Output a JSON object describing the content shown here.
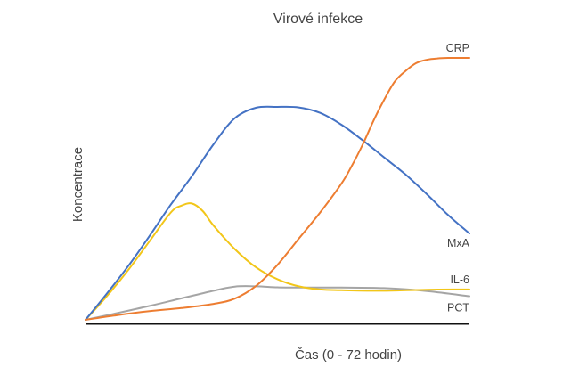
{
  "chart_data": {
    "type": "line",
    "title": "Virové infekce",
    "xlabel": "Čas (0 - 72 hodin)",
    "ylabel": "Koncentrace",
    "xlim": [
      0,
      72
    ],
    "ylim": [
      0,
      100
    ],
    "grid": false,
    "legend": "inline at line ends (right)",
    "series": [
      {
        "name": "CRP",
        "color": "#ED7D31",
        "x": [
          0,
          6,
          12,
          18,
          24,
          28,
          32,
          36,
          40,
          44,
          48,
          50,
          52,
          54,
          56,
          58,
          60,
          62,
          64,
          66,
          68,
          70,
          72
        ],
        "y": [
          0,
          1.8,
          3.3,
          4.5,
          6.1,
          8.1,
          13,
          21,
          31,
          41,
          52,
          59,
          67,
          76,
          84,
          91,
          95,
          98,
          99.3,
          99.8,
          100,
          100,
          100
        ]
      },
      {
        "name": "MxA",
        "color": "#4472C4",
        "x": [
          0,
          4,
          8,
          12,
          16,
          20,
          24,
          28,
          32,
          36,
          40,
          44,
          48,
          52,
          56,
          60,
          64,
          68,
          72
        ],
        "y": [
          0,
          10,
          20.5,
          32,
          44,
          55,
          67,
          77,
          81,
          81.3,
          81.1,
          79,
          74.5,
          68.5,
          62,
          55.5,
          48,
          40,
          33
        ]
      },
      {
        "name": "IL-6",
        "color": "#F2C619",
        "x": [
          0,
          4,
          8,
          12,
          16,
          18,
          20,
          22,
          24,
          28,
          32,
          36,
          40,
          44,
          48,
          56,
          64,
          72
        ],
        "y": [
          0,
          9,
          19,
          30,
          41,
          43.6,
          44.4,
          41.5,
          36,
          27,
          20,
          15.5,
          12.8,
          11.6,
          11.3,
          11.1,
          11.5,
          11.6
        ]
      },
      {
        "name": "PCT",
        "color": "#A5A5A5",
        "x": [
          0,
          6,
          12,
          18,
          24,
          28,
          32,
          36,
          40,
          48,
          56,
          64,
          72
        ],
        "y": [
          0,
          2.6,
          5.3,
          8.2,
          11.1,
          12.7,
          12.8,
          12.4,
          12.3,
          12.3,
          12.1,
          11,
          9
        ]
      }
    ]
  }
}
